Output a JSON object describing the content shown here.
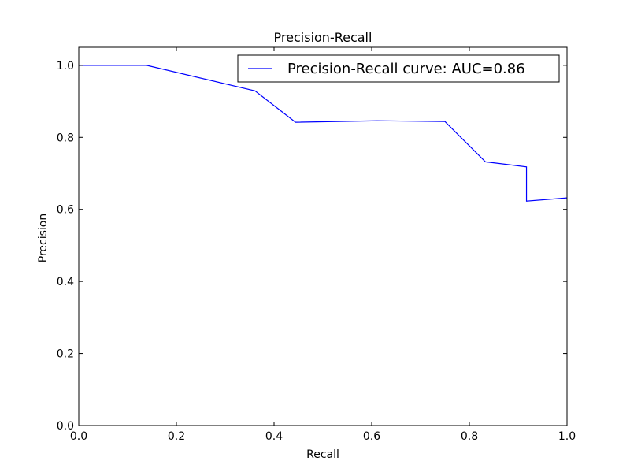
{
  "chart_data": {
    "type": "line",
    "title": "Precision-Recall",
    "xlabel": "Recall",
    "ylabel": "Precision",
    "xlim": [
      0.0,
      1.0
    ],
    "ylim": [
      0.0,
      1.05
    ],
    "x_ticks": [
      0.0,
      0.2,
      0.4,
      0.6,
      0.8,
      1.0
    ],
    "y_ticks": [
      0.0,
      0.2,
      0.4,
      0.6,
      0.8,
      1.0
    ],
    "x_tick_labels": [
      "0.0",
      "0.2",
      "0.4",
      "0.6",
      "0.8",
      "1.0"
    ],
    "y_tick_labels": [
      "0.0",
      "0.2",
      "0.4",
      "0.6",
      "0.8",
      "1.0"
    ],
    "grid": false,
    "legend_position": "top-right",
    "series": [
      {
        "name": "Precision-Recall curve: AUC=0.86",
        "color": "#0000ff",
        "x": [
          0.0,
          0.139,
          0.361,
          0.444,
          0.611,
          0.75,
          0.833,
          0.917,
          0.917,
          1.0
        ],
        "y": [
          1.0,
          1.0,
          0.929,
          0.842,
          0.846,
          0.844,
          0.732,
          0.718,
          0.623,
          0.632
        ]
      }
    ]
  }
}
